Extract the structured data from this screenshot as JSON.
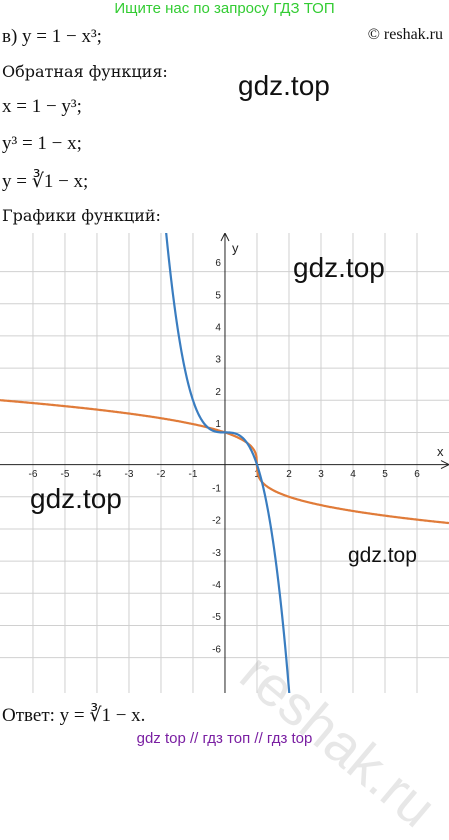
{
  "header": {
    "banner": "Ищите нас по запросу ГДЗ ТОП",
    "copyright": "© reshak.ru"
  },
  "task": "в) y = 1 − x³;",
  "inverse_heading": "Обратная функция:",
  "steps": [
    "x = 1 − y³;",
    "y³ = 1 − x;",
    "y = ∛1 − x;"
  ],
  "graph_heading": "Графики функций:",
  "graph": {
    "x_label": "x",
    "y_label": "y",
    "xlim": [
      -7.03,
      7
    ],
    "ylim": [
      -7.1,
      7.2
    ],
    "xticks": [
      -6,
      -5,
      -4,
      -3,
      -2,
      -1,
      1,
      2,
      3,
      4,
      5,
      6
    ],
    "yticks": [
      -6,
      -5,
      -4,
      -3,
      -2,
      -1,
      1,
      2,
      3,
      4,
      5,
      6
    ]
  },
  "watermarks": [
    "gdz.top",
    "gdz.top",
    "gdz.top",
    "gdz.top",
    "reshak.ru"
  ],
  "answer": "Ответ: y = ∛1 − x.",
  "footer": "gdz top // гдз топ // гдз top"
}
